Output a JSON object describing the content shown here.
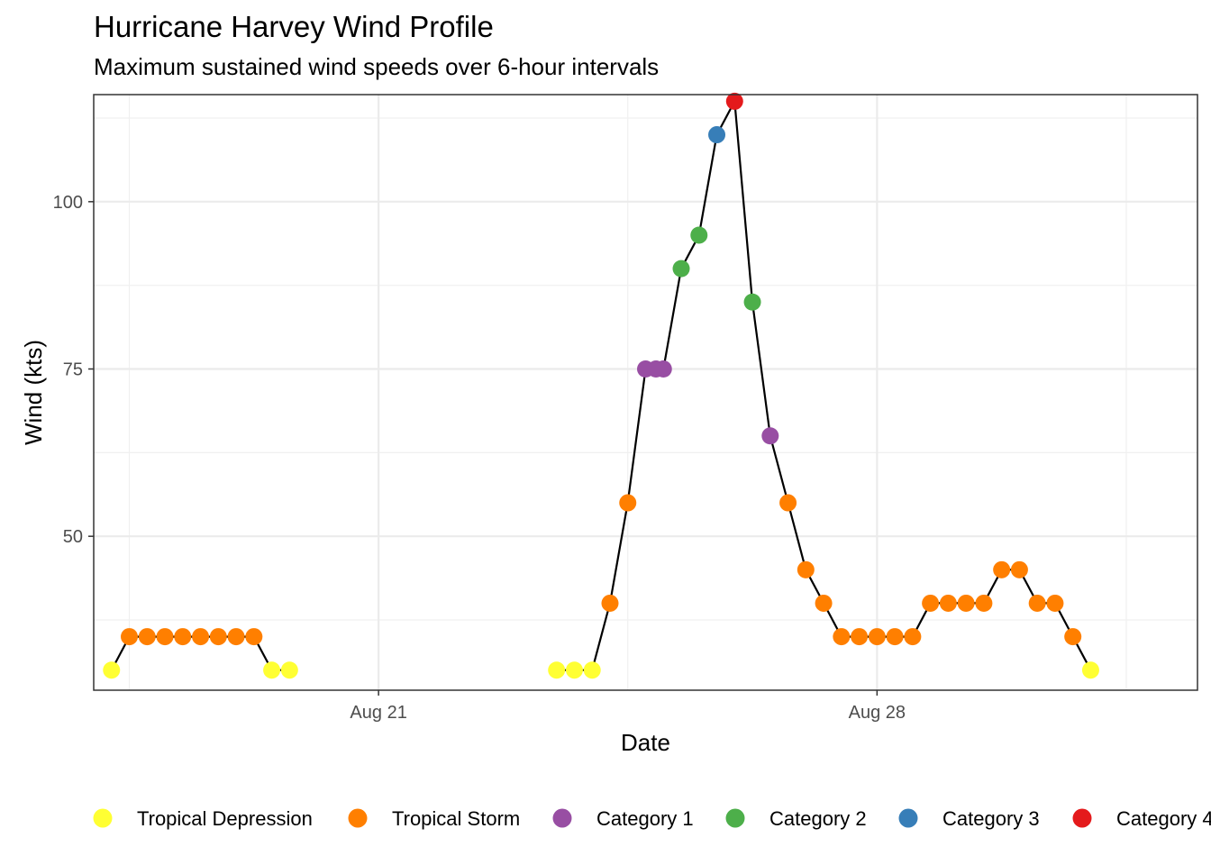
{
  "chart_data": {
    "type": "scatter",
    "title": "Hurricane Harvey Wind Profile",
    "subtitle": "Maximum sustained wind speeds over 6-hour intervals",
    "xlabel": "Date",
    "ylabel": "Wind (kts)",
    "x_ticks": [
      {
        "date": "2017-08-21",
        "label": "Aug 21"
      },
      {
        "date": "2017-08-28",
        "label": "Aug 28"
      }
    ],
    "x_range": [
      "2017-08-17T00:00",
      "2017-09-01T12:00"
    ],
    "y_ticks": [
      50,
      75,
      100
    ],
    "ylim": [
      27,
      116
    ],
    "grid": true,
    "connect_points": true,
    "legend_position": "bottom",
    "categories": [
      {
        "name": "Tropical Depression",
        "color": "#FFFF33"
      },
      {
        "name": "Tropical Storm",
        "color": "#FF7F00"
      },
      {
        "name": "Category 1",
        "color": "#984EA3"
      },
      {
        "name": "Category 2",
        "color": "#4DAF4A"
      },
      {
        "name": "Category 3",
        "color": "#377EB8"
      },
      {
        "name": "Category 4",
        "color": "#E41A1C"
      }
    ],
    "points": [
      {
        "date": "2017-08-17T06:00",
        "wind": 30,
        "category": "Tropical Depression"
      },
      {
        "date": "2017-08-17T12:00",
        "wind": 35,
        "category": "Tropical Storm"
      },
      {
        "date": "2017-08-17T18:00",
        "wind": 35,
        "category": "Tropical Storm"
      },
      {
        "date": "2017-08-18T00:00",
        "wind": 35,
        "category": "Tropical Storm"
      },
      {
        "date": "2017-08-18T06:00",
        "wind": 35,
        "category": "Tropical Storm"
      },
      {
        "date": "2017-08-18T12:00",
        "wind": 35,
        "category": "Tropical Storm"
      },
      {
        "date": "2017-08-18T18:00",
        "wind": 35,
        "category": "Tropical Storm"
      },
      {
        "date": "2017-08-19T00:00",
        "wind": 35,
        "category": "Tropical Storm"
      },
      {
        "date": "2017-08-19T06:00",
        "wind": 35,
        "category": "Tropical Storm"
      },
      {
        "date": "2017-08-19T12:00",
        "wind": 30,
        "category": "Tropical Depression"
      },
      {
        "date": "2017-08-19T18:00",
        "wind": 30,
        "category": "Tropical Depression"
      },
      {
        "date": "2017-08-23T12:00",
        "wind": 30,
        "category": "Tropical Depression"
      },
      {
        "date": "2017-08-23T18:00",
        "wind": 30,
        "category": "Tropical Depression"
      },
      {
        "date": "2017-08-24T00:00",
        "wind": 30,
        "category": "Tropical Depression"
      },
      {
        "date": "2017-08-24T06:00",
        "wind": 40,
        "category": "Tropical Storm"
      },
      {
        "date": "2017-08-24T12:00",
        "wind": 55,
        "category": "Tropical Storm"
      },
      {
        "date": "2017-08-24T18:00",
        "wind": 75,
        "category": "Category 1"
      },
      {
        "date": "2017-08-24T21:30",
        "wind": 75,
        "category": "Category 1"
      },
      {
        "date": "2017-08-25T00:00",
        "wind": 75,
        "category": "Category 1"
      },
      {
        "date": "2017-08-25T06:00",
        "wind": 90,
        "category": "Category 2"
      },
      {
        "date": "2017-08-25T12:00",
        "wind": 95,
        "category": "Category 2"
      },
      {
        "date": "2017-08-25T18:00",
        "wind": 110,
        "category": "Category 3"
      },
      {
        "date": "2017-08-26T00:00",
        "wind": 115,
        "category": "Category 4"
      },
      {
        "date": "2017-08-26T06:00",
        "wind": 85,
        "category": "Category 2"
      },
      {
        "date": "2017-08-26T12:00",
        "wind": 65,
        "category": "Category 1"
      },
      {
        "date": "2017-08-26T18:00",
        "wind": 55,
        "category": "Tropical Storm"
      },
      {
        "date": "2017-08-27T00:00",
        "wind": 45,
        "category": "Tropical Storm"
      },
      {
        "date": "2017-08-27T06:00",
        "wind": 40,
        "category": "Tropical Storm"
      },
      {
        "date": "2017-08-27T12:00",
        "wind": 35,
        "category": "Tropical Storm"
      },
      {
        "date": "2017-08-27T18:00",
        "wind": 35,
        "category": "Tropical Storm"
      },
      {
        "date": "2017-08-28T00:00",
        "wind": 35,
        "category": "Tropical Storm"
      },
      {
        "date": "2017-08-28T06:00",
        "wind": 35,
        "category": "Tropical Storm"
      },
      {
        "date": "2017-08-28T12:00",
        "wind": 35,
        "category": "Tropical Storm"
      },
      {
        "date": "2017-08-28T18:00",
        "wind": 40,
        "category": "Tropical Storm"
      },
      {
        "date": "2017-08-29T00:00",
        "wind": 40,
        "category": "Tropical Storm"
      },
      {
        "date": "2017-08-29T06:00",
        "wind": 40,
        "category": "Tropical Storm"
      },
      {
        "date": "2017-08-29T12:00",
        "wind": 40,
        "category": "Tropical Storm"
      },
      {
        "date": "2017-08-29T18:00",
        "wind": 45,
        "category": "Tropical Storm"
      },
      {
        "date": "2017-08-30T00:00",
        "wind": 45,
        "category": "Tropical Storm"
      },
      {
        "date": "2017-08-30T06:00",
        "wind": 40,
        "category": "Tropical Storm"
      },
      {
        "date": "2017-08-30T12:00",
        "wind": 40,
        "category": "Tropical Storm"
      },
      {
        "date": "2017-08-30T18:00",
        "wind": 35,
        "category": "Tropical Storm"
      },
      {
        "date": "2017-08-31T00:00",
        "wind": 30,
        "category": "Tropical Depression"
      }
    ]
  }
}
